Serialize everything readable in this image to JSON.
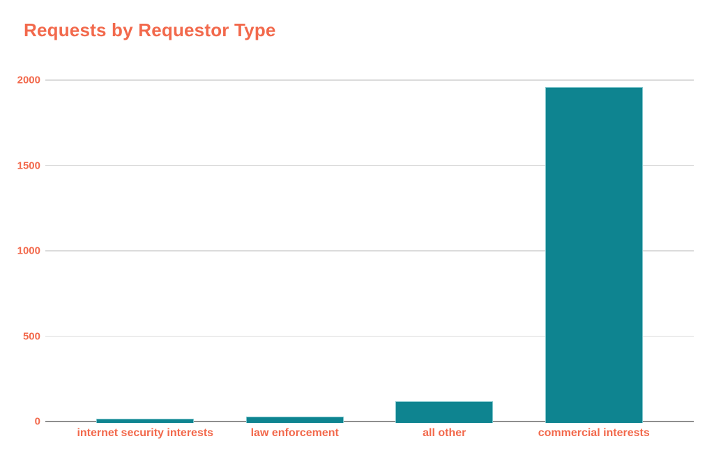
{
  "colors": {
    "accent_orange": "#F2694C",
    "bar_fill": "#0E8490",
    "bar_edge": "#7FC6CC",
    "gridline": "#DBDBDB",
    "baseline": "#8E8E8E",
    "background": "#FFFFFF"
  },
  "chart_data": {
    "type": "bar",
    "title": "Requests by Requestor Type",
    "categories": [
      "internet security interests",
      "law enforcement",
      "all other",
      "commercial interests"
    ],
    "values": [
      15,
      30,
      120,
      1960
    ],
    "xlabel": "",
    "ylabel": "",
    "ylim": [
      0,
      2000
    ],
    "yticks": [
      0,
      500,
      1000,
      1500,
      2000
    ],
    "ytick_labels": [
      "0",
      "500",
      "1000",
      "1500",
      "2000"
    ],
    "grid": "horizontal",
    "legend": false,
    "bar_color": "#0E8490",
    "text_color": "#F2694C"
  }
}
